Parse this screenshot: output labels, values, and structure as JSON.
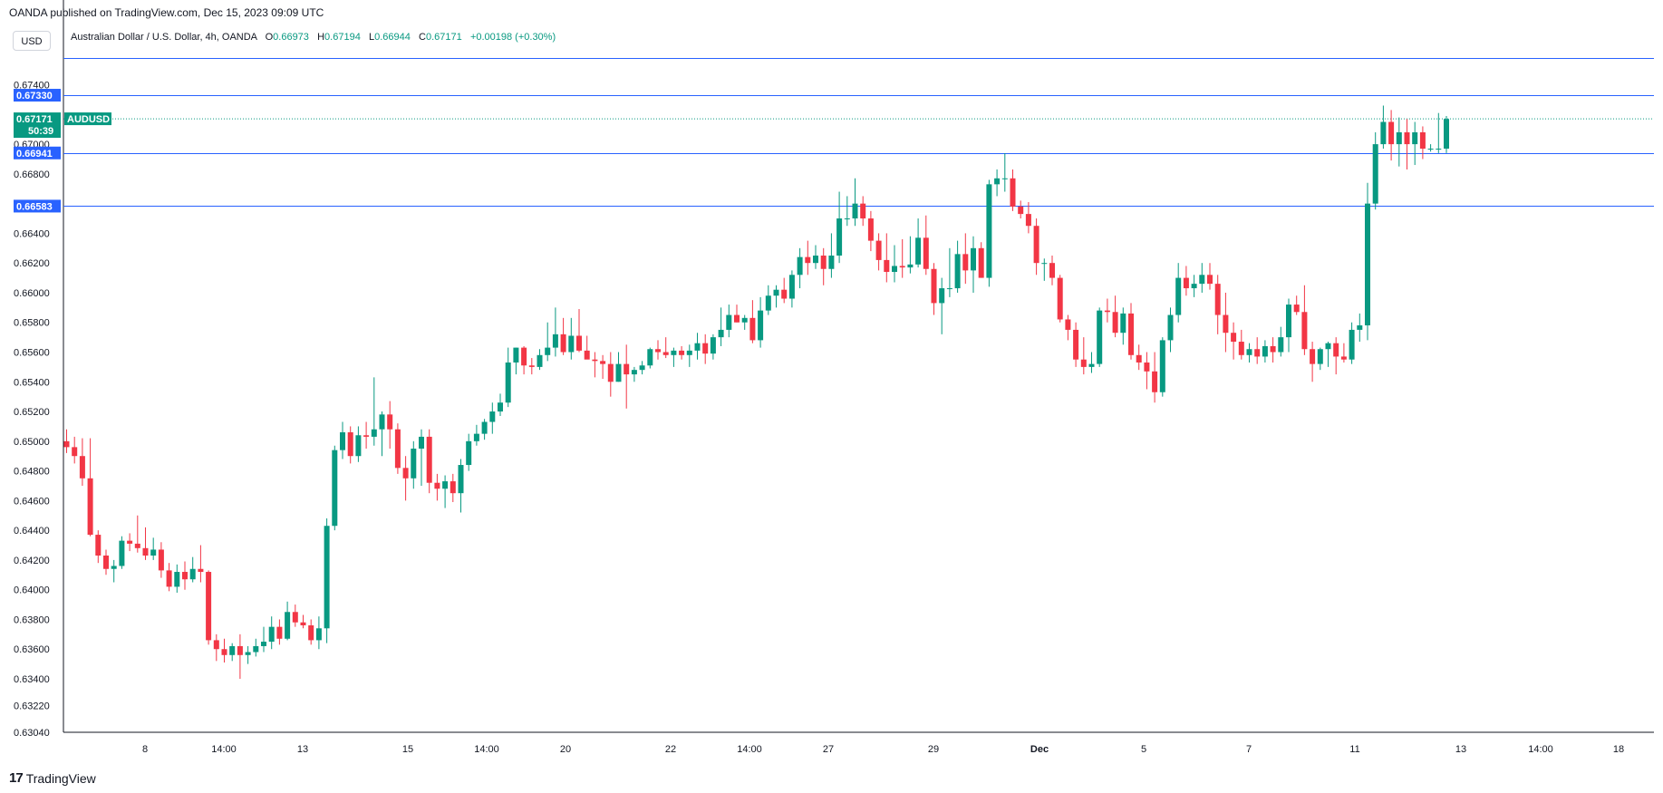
{
  "header": {
    "publisher_line": "OANDA published on TradingView.com, Dec 15, 2023 09:09 UTC"
  },
  "unit_button": "USD",
  "symbol": {
    "name": "Australian Dollar / U.S. Dollar, 4h, OANDA",
    "o_label": "O",
    "o": "0.66973",
    "h_label": "H",
    "h": "0.67194",
    "l_label": "L",
    "l": "0.66944",
    "c_label": "C",
    "c": "0.67171",
    "change": "+0.00198 (+0.30%)"
  },
  "price_tag": {
    "price": "0.67171",
    "countdown": "50:39",
    "symbol_label": "AUDUSD"
  },
  "footer": {
    "brand": "TradingView",
    "brand_mark": "17"
  },
  "colors": {
    "up": "#089981",
    "down": "#f23645",
    "level_line": "#2962ff",
    "axis": "#131722"
  },
  "chart_data": {
    "type": "candlestick",
    "title": "Australian Dollar / U.S. Dollar, 4h, OANDA",
    "ylim": [
      0.6304,
      0.6744
    ],
    "y_ticks": [
      "0.67400",
      "0.67000",
      "0.66800",
      "0.66400",
      "0.66200",
      "0.66000",
      "0.65800",
      "0.65600",
      "0.65400",
      "0.65200",
      "0.65000",
      "0.64800",
      "0.64600",
      "0.64400",
      "0.64200",
      "0.64000",
      "0.63800",
      "0.63600",
      "0.63400",
      "0.63220",
      "0.63040"
    ],
    "x_ticks": [
      "8",
      "14:00",
      "13",
      "15",
      "14:00",
      "20",
      "22",
      "14:00",
      "27",
      "29",
      "Dec",
      "5",
      "7",
      "11",
      "13",
      "14:00",
      "18"
    ],
    "horizontal_levels": [
      {
        "label": "0.67330",
        "value": 0.6733
      },
      {
        "label": "0.66941",
        "value": 0.66941
      },
      {
        "label": "0.66583",
        "value": 0.66583
      },
      {
        "value": 0.6758
      }
    ],
    "last_price": 0.67171,
    "candles": [
      [
        0.65,
        0.6508,
        0.6492,
        0.6496
      ],
      [
        0.6496,
        0.6503,
        0.6485,
        0.649
      ],
      [
        0.649,
        0.6502,
        0.647,
        0.6475
      ],
      [
        0.6475,
        0.6502,
        0.6436,
        0.6437
      ],
      [
        0.6437,
        0.644,
        0.6418,
        0.6423
      ],
      [
        0.6423,
        0.6427,
        0.641,
        0.6414
      ],
      [
        0.6414,
        0.642,
        0.6405,
        0.6416
      ],
      [
        0.6416,
        0.6436,
        0.6414,
        0.6433
      ],
      [
        0.6433,
        0.6438,
        0.6426,
        0.6431
      ],
      [
        0.6431,
        0.645,
        0.6425,
        0.6428
      ],
      [
        0.6428,
        0.6442,
        0.642,
        0.6423
      ],
      [
        0.6423,
        0.6435,
        0.642,
        0.6427
      ],
      [
        0.6427,
        0.6432,
        0.6408,
        0.6413
      ],
      [
        0.6413,
        0.6418,
        0.6399,
        0.6402
      ],
      [
        0.6402,
        0.6417,
        0.6398,
        0.6412
      ],
      [
        0.6412,
        0.6419,
        0.64,
        0.6407
      ],
      [
        0.6407,
        0.6422,
        0.6405,
        0.6414
      ],
      [
        0.6414,
        0.643,
        0.6405,
        0.6412
      ],
      [
        0.6412,
        0.6413,
        0.6363,
        0.6366
      ],
      [
        0.6366,
        0.637,
        0.6352,
        0.636
      ],
      [
        0.636,
        0.6367,
        0.6351,
        0.6356
      ],
      [
        0.6356,
        0.6364,
        0.6352,
        0.6362
      ],
      [
        0.6362,
        0.637,
        0.634,
        0.6356
      ],
      [
        0.6356,
        0.6362,
        0.635,
        0.6358
      ],
      [
        0.6358,
        0.6367,
        0.6355,
        0.6362
      ],
      [
        0.6362,
        0.6375,
        0.6358,
        0.6365
      ],
      [
        0.6365,
        0.6382,
        0.636,
        0.6375
      ],
      [
        0.6375,
        0.638,
        0.6363,
        0.6367
      ],
      [
        0.6367,
        0.6392,
        0.6366,
        0.6385
      ],
      [
        0.6385,
        0.639,
        0.6375,
        0.6378
      ],
      [
        0.6378,
        0.6383,
        0.6374,
        0.6376
      ],
      [
        0.6376,
        0.638,
        0.6363,
        0.6366
      ],
      [
        0.6366,
        0.6382,
        0.636,
        0.6374
      ],
      [
        0.6374,
        0.6448,
        0.6364,
        0.6443
      ],
      [
        0.6443,
        0.6497,
        0.644,
        0.6494
      ],
      [
        0.6494,
        0.6513,
        0.6488,
        0.6506
      ],
      [
        0.6506,
        0.651,
        0.6485,
        0.649
      ],
      [
        0.649,
        0.651,
        0.6486,
        0.6504
      ],
      [
        0.6504,
        0.6513,
        0.6495,
        0.6503
      ],
      [
        0.6503,
        0.6543,
        0.6497,
        0.6508
      ],
      [
        0.6508,
        0.652,
        0.649,
        0.6518
      ],
      [
        0.6518,
        0.6527,
        0.6495,
        0.6508
      ],
      [
        0.6508,
        0.6512,
        0.6478,
        0.6482
      ],
      [
        0.6482,
        0.649,
        0.646,
        0.6475
      ],
      [
        0.6475,
        0.65,
        0.6468,
        0.6495
      ],
      [
        0.6495,
        0.6508,
        0.647,
        0.6503
      ],
      [
        0.6503,
        0.6508,
        0.6465,
        0.6472
      ],
      [
        0.6472,
        0.6478,
        0.646,
        0.6468
      ],
      [
        0.6468,
        0.6477,
        0.6455,
        0.6473
      ],
      [
        0.6473,
        0.6478,
        0.6459,
        0.6465
      ],
      [
        0.6465,
        0.6488,
        0.6452,
        0.6484
      ],
      [
        0.6484,
        0.6505,
        0.648,
        0.65
      ],
      [
        0.65,
        0.6511,
        0.6497,
        0.6505
      ],
      [
        0.6505,
        0.6515,
        0.6501,
        0.6513
      ],
      [
        0.6513,
        0.6526,
        0.6505,
        0.652
      ],
      [
        0.652,
        0.6532,
        0.6517,
        0.6526
      ],
      [
        0.6526,
        0.6563,
        0.6523,
        0.6553
      ],
      [
        0.6553,
        0.6563,
        0.6545,
        0.6563
      ],
      [
        0.6563,
        0.6564,
        0.6545,
        0.6551
      ],
      [
        0.6551,
        0.6556,
        0.6545,
        0.655
      ],
      [
        0.655,
        0.6562,
        0.6548,
        0.6558
      ],
      [
        0.6558,
        0.658,
        0.6554,
        0.6563
      ],
      [
        0.6563,
        0.659,
        0.6557,
        0.6572
      ],
      [
        0.6572,
        0.6583,
        0.6558,
        0.656
      ],
      [
        0.656,
        0.6583,
        0.6555,
        0.6571
      ],
      [
        0.6571,
        0.6589,
        0.656,
        0.6561
      ],
      [
        0.6561,
        0.6571,
        0.6558,
        0.6555
      ],
      [
        0.6555,
        0.656,
        0.6543,
        0.6554
      ],
      [
        0.6554,
        0.6558,
        0.6542,
        0.6552
      ],
      [
        0.6552,
        0.656,
        0.653,
        0.654
      ],
      [
        0.654,
        0.656,
        0.654,
        0.6552
      ],
      [
        0.6552,
        0.6565,
        0.6522,
        0.6545
      ],
      [
        0.6545,
        0.655,
        0.654,
        0.6548
      ],
      [
        0.6548,
        0.6554,
        0.6545,
        0.6551
      ],
      [
        0.6551,
        0.6563,
        0.6549,
        0.6562
      ],
      [
        0.6562,
        0.6568,
        0.6555,
        0.656
      ],
      [
        0.656,
        0.657,
        0.6556,
        0.6558
      ],
      [
        0.6558,
        0.6563,
        0.655,
        0.6561
      ],
      [
        0.6561,
        0.6564,
        0.6555,
        0.6558
      ],
      [
        0.6558,
        0.6565,
        0.655,
        0.6561
      ],
      [
        0.6561,
        0.6573,
        0.6555,
        0.6566
      ],
      [
        0.6566,
        0.6572,
        0.6552,
        0.6559
      ],
      [
        0.6559,
        0.6572,
        0.6555,
        0.657
      ],
      [
        0.657,
        0.659,
        0.6564,
        0.6575
      ],
      [
        0.6575,
        0.6592,
        0.657,
        0.6585
      ],
      [
        0.6585,
        0.6592,
        0.658,
        0.658
      ],
      [
        0.658,
        0.6585,
        0.6575,
        0.6583
      ],
      [
        0.6583,
        0.6595,
        0.6566,
        0.6568
      ],
      [
        0.6568,
        0.6597,
        0.6563,
        0.6588
      ],
      [
        0.6588,
        0.6605,
        0.6585,
        0.6598
      ],
      [
        0.6598,
        0.6605,
        0.659,
        0.6602
      ],
      [
        0.6602,
        0.661,
        0.6593,
        0.6596
      ],
      [
        0.6596,
        0.6615,
        0.659,
        0.6612
      ],
      [
        0.6612,
        0.663,
        0.6603,
        0.6624
      ],
      [
        0.6624,
        0.6635,
        0.6612,
        0.662
      ],
      [
        0.662,
        0.6632,
        0.6616,
        0.6625
      ],
      [
        0.6625,
        0.663,
        0.6605,
        0.6616
      ],
      [
        0.6616,
        0.664,
        0.661,
        0.6625
      ],
      [
        0.6625,
        0.6668,
        0.662,
        0.665
      ],
      [
        0.665,
        0.6665,
        0.6645,
        0.665
      ],
      [
        0.665,
        0.6677,
        0.6645,
        0.666
      ],
      [
        0.666,
        0.6665,
        0.6645,
        0.665
      ],
      [
        0.665,
        0.6655,
        0.6628,
        0.6635
      ],
      [
        0.6635,
        0.664,
        0.6615,
        0.6622
      ],
      [
        0.6622,
        0.664,
        0.6607,
        0.6614
      ],
      [
        0.6614,
        0.6632,
        0.6607,
        0.6618
      ],
      [
        0.6618,
        0.6636,
        0.661,
        0.6617
      ],
      [
        0.6617,
        0.6638,
        0.6613,
        0.6619
      ],
      [
        0.6619,
        0.665,
        0.6617,
        0.6637
      ],
      [
        0.6637,
        0.6652,
        0.6612,
        0.6616
      ],
      [
        0.6616,
        0.662,
        0.6585,
        0.6593
      ],
      [
        0.6593,
        0.661,
        0.6572,
        0.6603
      ],
      [
        0.6603,
        0.663,
        0.6597,
        0.6603
      ],
      [
        0.6603,
        0.6635,
        0.66,
        0.6626
      ],
      [
        0.6626,
        0.664,
        0.6606,
        0.6615
      ],
      [
        0.6615,
        0.6638,
        0.66,
        0.663
      ],
      [
        0.663,
        0.6634,
        0.661,
        0.661
      ],
      [
        0.661,
        0.6676,
        0.6604,
        0.6673
      ],
      [
        0.6673,
        0.6683,
        0.6665,
        0.6677
      ],
      [
        0.6677,
        0.6694,
        0.6668,
        0.6677
      ],
      [
        0.6677,
        0.6683,
        0.6655,
        0.6658
      ],
      [
        0.6658,
        0.6662,
        0.665,
        0.6653
      ],
      [
        0.6653,
        0.6661,
        0.664,
        0.6645
      ],
      [
        0.6645,
        0.665,
        0.6612,
        0.662
      ],
      [
        0.662,
        0.6623,
        0.6608,
        0.662
      ],
      [
        0.662,
        0.6625,
        0.6605,
        0.661
      ],
      [
        0.661,
        0.6612,
        0.658,
        0.6582
      ],
      [
        0.6582,
        0.6585,
        0.6568,
        0.6575
      ],
      [
        0.6575,
        0.658,
        0.655,
        0.6555
      ],
      [
        0.6555,
        0.657,
        0.6545,
        0.655
      ],
      [
        0.655,
        0.656,
        0.6546,
        0.6552
      ],
      [
        0.6552,
        0.659,
        0.655,
        0.6588
      ],
      [
        0.6588,
        0.6596,
        0.658,
        0.6587
      ],
      [
        0.6587,
        0.6598,
        0.657,
        0.6573
      ],
      [
        0.6573,
        0.659,
        0.6565,
        0.6586
      ],
      [
        0.6586,
        0.6593,
        0.6555,
        0.6558
      ],
      [
        0.6558,
        0.6565,
        0.6548,
        0.6553
      ],
      [
        0.6553,
        0.656,
        0.6535,
        0.6547
      ],
      [
        0.6547,
        0.656,
        0.6526,
        0.6533
      ],
      [
        0.6533,
        0.657,
        0.653,
        0.6568
      ],
      [
        0.6568,
        0.659,
        0.656,
        0.6585
      ],
      [
        0.6585,
        0.662,
        0.658,
        0.661
      ],
      [
        0.661,
        0.6618,
        0.6598,
        0.6603
      ],
      [
        0.6603,
        0.6612,
        0.6597,
        0.6606
      ],
      [
        0.6606,
        0.662,
        0.66,
        0.6612
      ],
      [
        0.6612,
        0.662,
        0.6602,
        0.6606
      ],
      [
        0.6606,
        0.6612,
        0.6572,
        0.6585
      ],
      [
        0.6585,
        0.66,
        0.656,
        0.6573
      ],
      [
        0.6573,
        0.658,
        0.6555,
        0.6567
      ],
      [
        0.6567,
        0.6575,
        0.6555,
        0.6558
      ],
      [
        0.6558,
        0.6566,
        0.6553,
        0.6562
      ],
      [
        0.6562,
        0.657,
        0.6552,
        0.6557
      ],
      [
        0.6557,
        0.6568,
        0.6553,
        0.6564
      ],
      [
        0.6564,
        0.657,
        0.6553,
        0.656
      ],
      [
        0.656,
        0.6577,
        0.6557,
        0.657
      ],
      [
        0.657,
        0.6596,
        0.656,
        0.6592
      ],
      [
        0.6592,
        0.6598,
        0.6585,
        0.6587
      ],
      [
        0.6587,
        0.6605,
        0.6558,
        0.6562
      ],
      [
        0.6562,
        0.6567,
        0.654,
        0.6552
      ],
      [
        0.6552,
        0.6563,
        0.6548,
        0.6562
      ],
      [
        0.6562,
        0.6567,
        0.655,
        0.6566
      ],
      [
        0.6566,
        0.657,
        0.6545,
        0.6557
      ],
      [
        0.6557,
        0.6566,
        0.6553,
        0.6555
      ],
      [
        0.6555,
        0.658,
        0.6552,
        0.6575
      ],
      [
        0.6575,
        0.6586,
        0.6567,
        0.6578
      ],
      [
        0.6578,
        0.6674,
        0.6568,
        0.666
      ],
      [
        0.666,
        0.6708,
        0.6656,
        0.67
      ],
      [
        0.67,
        0.6726,
        0.6697,
        0.6715
      ],
      [
        0.6715,
        0.6723,
        0.6689,
        0.67
      ],
      [
        0.67,
        0.6718,
        0.6685,
        0.6708
      ],
      [
        0.6708,
        0.6717,
        0.6683,
        0.67
      ],
      [
        0.67,
        0.6715,
        0.6686,
        0.6708
      ],
      [
        0.6708,
        0.6712,
        0.669,
        0.6697
      ],
      [
        0.6697,
        0.67,
        0.6695,
        0.6697
      ],
      [
        0.6697,
        0.6721,
        0.6694,
        0.6697
      ],
      [
        0.6697,
        0.6719,
        0.6694,
        0.6717
      ]
    ]
  }
}
